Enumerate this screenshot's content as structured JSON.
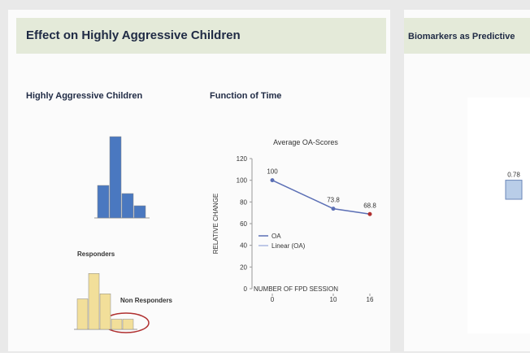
{
  "left_slide": {
    "title": "Effect on Highly Aggressive Children",
    "sections": [
      "Highly Aggressive Children",
      "Function of Time"
    ],
    "histograms": [
      {
        "color": "#4a78c0",
        "values": [
          4,
          10,
          3,
          1.5
        ],
        "ylim": [
          0,
          10
        ]
      },
      {
        "color": "#f2df9a",
        "values": [
          3,
          5.5,
          3.5,
          1,
          1
        ],
        "ylim": [
          0,
          6
        ],
        "labels": [
          "Responders",
          "Non Responders"
        ]
      }
    ],
    "line_chart": {
      "type": "line",
      "title": "Average OA-Scores",
      "y_label": "RELATIVE CHANGE",
      "x_label": "NUMBER OF FPD SESSION",
      "x": [
        0,
        10,
        16
      ],
      "xlim": [
        0,
        16
      ],
      "xticks": [
        0,
        10,
        16
      ],
      "series": [
        {
          "name": "OA",
          "color": "#5b6fb5",
          "values": [
            100,
            73.8,
            68.8
          ]
        },
        {
          "name": "Linear (OA)",
          "color": "#a9b6e0"
        }
      ],
      "value_labels": [
        "100",
        "73.8",
        "68.8"
      ],
      "ylim": [
        0,
        120
      ],
      "yticks": [
        0,
        20,
        40,
        60,
        80,
        100,
        120
      ]
    }
  },
  "right_slide": {
    "title": "Biomarkers as Predictive",
    "bar": {
      "values": [
        0.78
      ],
      "value_labels": [
        "0.78"
      ],
      "ylim": [
        0,
        1
      ],
      "color": "#b9cde8"
    }
  }
}
